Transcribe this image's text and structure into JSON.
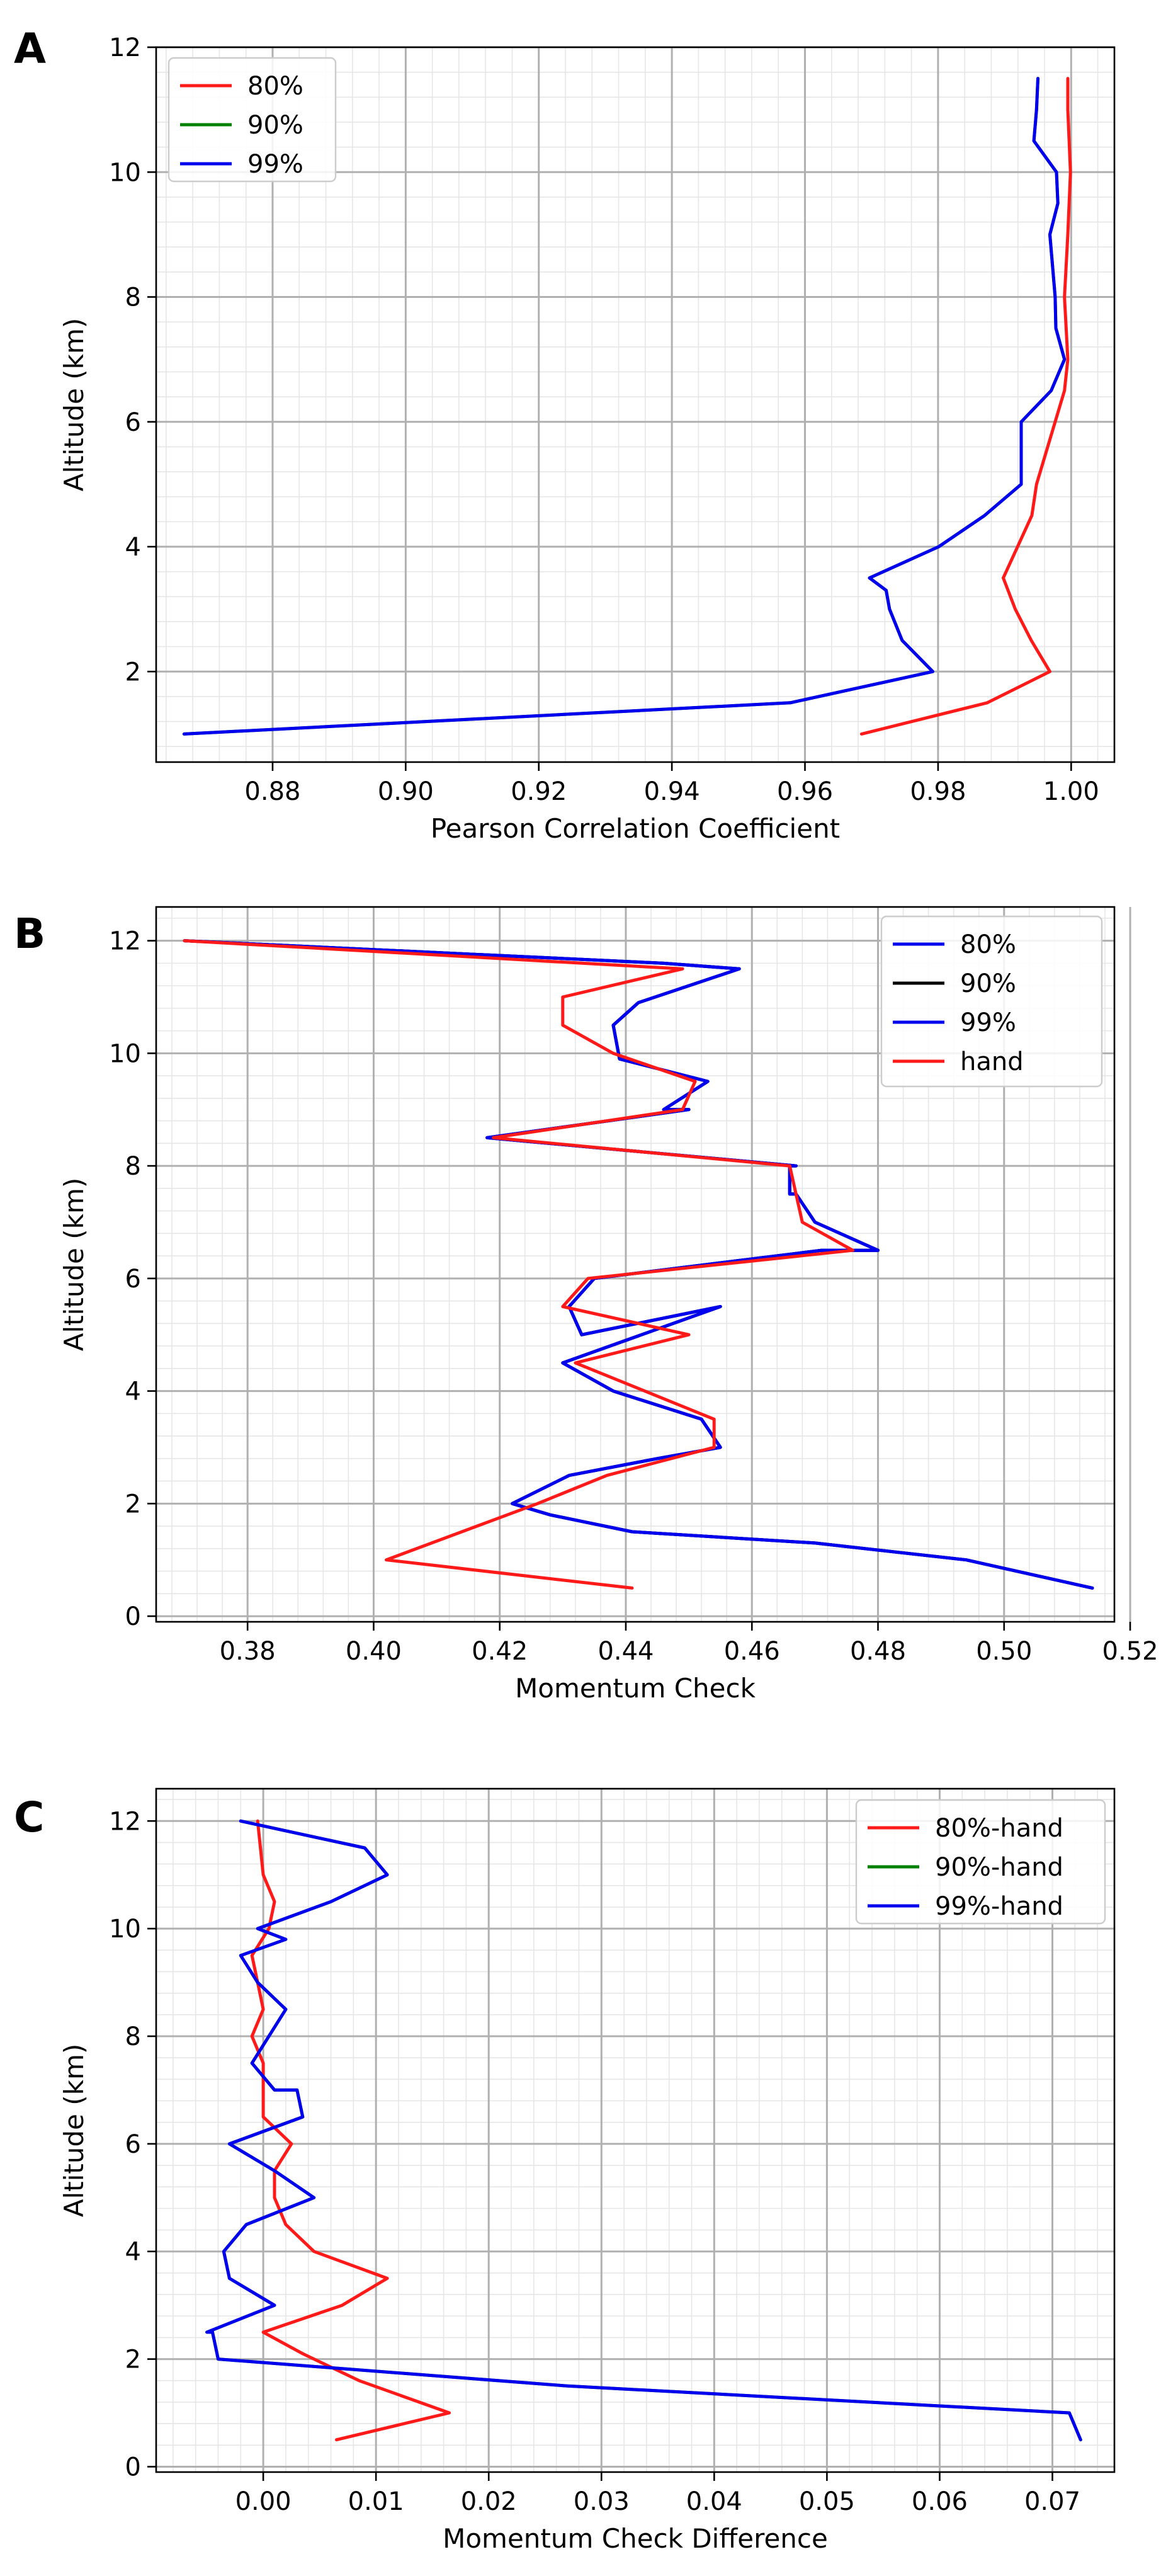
{
  "colors": {
    "red": "#ff1a1a",
    "green": "#008000",
    "blue": "#0000ee",
    "black": "#000000"
  },
  "chart_data": [
    {
      "panel": "A",
      "type": "line",
      "xlabel": "Pearson Correlation Coefficient",
      "ylabel": "Altitude (km)",
      "xlim": [
        0.8625,
        1.0065
      ],
      "ylim": [
        0.55,
        12.0
      ],
      "xticks": [
        0.88,
        0.9,
        0.92,
        0.94,
        0.96,
        0.98,
        1.0
      ],
      "xtick_labels": [
        "0.88",
        "0.90",
        "0.92",
        "0.94",
        "0.96",
        "0.98",
        "1.00"
      ],
      "yticks": [
        2,
        4,
        6,
        8,
        10,
        12
      ],
      "ytick_labels": [
        "2",
        "4",
        "6",
        "8",
        "10",
        "12"
      ],
      "minor_x_step": 0.004,
      "minor_y_step": 0.4,
      "grid": true,
      "legend_position": "upper-left",
      "series": [
        {
          "name": "80%",
          "color": "#ff1a1a",
          "x": [
            0.9685,
            0.9874,
            0.9968,
            0.994,
            0.9916,
            0.9898,
            0.9941,
            0.9948,
            0.999,
            0.9995,
            0.999,
            0.9995,
            0.9999,
            0.9995,
            0.9995
          ],
          "y": [
            1.0,
            1.5,
            2.0,
            2.5,
            3.0,
            3.5,
            4.5,
            5.0,
            6.5,
            7.0,
            8.0,
            9.0,
            10.0,
            11.0,
            11.5
          ]
        },
        {
          "name": "90%",
          "color": "#008000",
          "x": [
            0.8667,
            0.9578,
            0.9792,
            0.9746,
            0.9727,
            0.9722,
            0.9697,
            0.9801,
            0.987,
            0.9925,
            0.9925,
            0.997,
            0.999,
            0.9977,
            0.9976,
            0.9968,
            0.998,
            0.9978,
            0.9944,
            0.9948,
            0.995
          ],
          "y": [
            1.0,
            1.5,
            2.0,
            2.5,
            3.0,
            3.3,
            3.5,
            4.0,
            4.5,
            5.0,
            6.0,
            6.5,
            7.0,
            7.5,
            8.0,
            9.0,
            9.5,
            10.0,
            10.5,
            11.0,
            11.5
          ]
        },
        {
          "name": "99%",
          "color": "#0000ee",
          "x": [
            0.8667,
            0.9578,
            0.9792,
            0.9746,
            0.9727,
            0.9722,
            0.9697,
            0.9801,
            0.987,
            0.9925,
            0.9925,
            0.997,
            0.999,
            0.9977,
            0.9976,
            0.9968,
            0.998,
            0.9978,
            0.9944,
            0.9948,
            0.995
          ],
          "y": [
            1.0,
            1.5,
            2.0,
            2.5,
            3.0,
            3.3,
            3.5,
            4.0,
            4.5,
            5.0,
            6.0,
            6.5,
            7.0,
            7.5,
            8.0,
            9.0,
            9.5,
            10.0,
            10.5,
            11.0,
            11.5
          ]
        }
      ]
    },
    {
      "panel": "B",
      "type": "line",
      "xlabel": "Momentum Check",
      "ylabel": "Altitude (km)",
      "xlim": [
        0.3655,
        0.5175
      ],
      "ylim": [
        -0.1,
        12.6
      ],
      "xticks": [
        0.38,
        0.4,
        0.42,
        0.44,
        0.46,
        0.48,
        0.5,
        0.52
      ],
      "xtick_labels": [
        "0.38",
        "0.40",
        "0.42",
        "0.44",
        "0.46",
        "0.48",
        "0.50",
        "0.52"
      ],
      "yticks": [
        0,
        2,
        4,
        6,
        8,
        10,
        12
      ],
      "ytick_labels": [
        "0",
        "2",
        "4",
        "6",
        "8",
        "10",
        "12"
      ],
      "minor_x_step": 0.004,
      "minor_y_step": 0.4,
      "grid": true,
      "legend_position": "upper-right",
      "series": [
        {
          "name": "80%",
          "color": "#0000ee",
          "x": [
            0.514,
            0.494,
            0.47,
            0.441,
            0.428,
            0.422,
            0.431,
            0.445,
            0.455,
            0.452,
            0.438,
            0.43,
            0.455,
            0.433,
            0.431,
            0.435,
            0.471,
            0.48,
            0.47,
            0.467,
            0.466,
            0.466,
            0.467,
            0.418,
            0.45,
            0.446,
            0.453,
            0.439,
            0.438,
            0.442,
            0.458,
            0.446,
            0.37
          ],
          "y": [
            0.5,
            1.0,
            1.3,
            1.5,
            1.8,
            2.0,
            2.5,
            2.8,
            3.0,
            3.5,
            4.0,
            4.5,
            5.5,
            5.0,
            5.5,
            6.0,
            6.5,
            6.5,
            7.0,
            7.5,
            7.5,
            8.0,
            8.0,
            8.5,
            9.0,
            9.0,
            9.5,
            9.9,
            10.5,
            10.9,
            11.5,
            11.6,
            12.0
          ]
        },
        {
          "name": "90%",
          "color": "#000000",
          "x": [
            0.514,
            0.494,
            0.47,
            0.441,
            0.428,
            0.422,
            0.431,
            0.445,
            0.455,
            0.452,
            0.438,
            0.43,
            0.455,
            0.433,
            0.431,
            0.435,
            0.471,
            0.48,
            0.47,
            0.467,
            0.466,
            0.466,
            0.467,
            0.418,
            0.45,
            0.446,
            0.453,
            0.439,
            0.438,
            0.442,
            0.458,
            0.446,
            0.37
          ],
          "y": [
            0.5,
            1.0,
            1.3,
            1.5,
            1.8,
            2.0,
            2.5,
            2.8,
            3.0,
            3.5,
            4.0,
            4.5,
            5.5,
            5.0,
            5.5,
            6.0,
            6.5,
            6.5,
            7.0,
            7.5,
            7.5,
            8.0,
            8.0,
            8.5,
            9.0,
            9.0,
            9.5,
            9.9,
            10.5,
            10.9,
            11.5,
            11.6,
            12.0
          ]
        },
        {
          "name": "99%",
          "color": "#0000ee",
          "x": [
            0.514,
            0.494,
            0.47,
            0.441,
            0.428,
            0.422,
            0.431,
            0.445,
            0.455,
            0.452,
            0.438,
            0.43,
            0.455,
            0.433,
            0.431,
            0.435,
            0.471,
            0.48,
            0.47,
            0.467,
            0.466,
            0.466,
            0.467,
            0.418,
            0.45,
            0.446,
            0.453,
            0.439,
            0.438,
            0.442,
            0.458,
            0.446,
            0.37
          ],
          "y": [
            0.5,
            1.0,
            1.3,
            1.5,
            1.8,
            2.0,
            2.5,
            2.8,
            3.0,
            3.5,
            4.0,
            4.5,
            5.5,
            5.0,
            5.5,
            6.0,
            6.5,
            6.5,
            7.0,
            7.5,
            7.5,
            8.0,
            8.0,
            8.5,
            9.0,
            9.0,
            9.5,
            9.9,
            10.5,
            10.9,
            11.5,
            11.6,
            12.0
          ]
        },
        {
          "name": "hand",
          "color": "#ff1a1a",
          "x": [
            0.441,
            0.402,
            0.426,
            0.437,
            0.454,
            0.454,
            0.432,
            0.45,
            0.43,
            0.434,
            0.476,
            0.468,
            0.467,
            0.466,
            0.419,
            0.449,
            0.451,
            0.438,
            0.43,
            0.43,
            0.449,
            0.37
          ],
          "y": [
            0.5,
            1.0,
            2.0,
            2.5,
            3.0,
            3.5,
            4.5,
            5.0,
            5.5,
            6.0,
            6.5,
            7.0,
            7.5,
            8.0,
            8.5,
            9.0,
            9.5,
            10.0,
            10.5,
            11.0,
            11.5,
            12.0
          ]
        }
      ]
    },
    {
      "panel": "C",
      "type": "line",
      "xlabel": "Momentum Check Difference",
      "ylabel": "Altitude (km)",
      "xlim": [
        -0.0095,
        0.0755
      ],
      "ylim": [
        -0.1,
        12.6
      ],
      "xticks": [
        0.0,
        0.01,
        0.02,
        0.03,
        0.04,
        0.05,
        0.06,
        0.07
      ],
      "xtick_labels": [
        "0.00",
        "0.01",
        "0.02",
        "0.03",
        "0.04",
        "0.05",
        "0.06",
        "0.07"
      ],
      "yticks": [
        0,
        2,
        4,
        6,
        8,
        10,
        12
      ],
      "ytick_labels": [
        "0",
        "2",
        "4",
        "6",
        "8",
        "10",
        "12"
      ],
      "minor_x_step": 0.002,
      "minor_y_step": 0.4,
      "grid": true,
      "legend_position": "upper-right",
      "series": [
        {
          "name": "80%-hand",
          "color": "#ff1a1a",
          "x": [
            0.0065,
            0.0165,
            0.0085,
            0.0035,
            0.0,
            0.007,
            0.011,
            0.0045,
            0.002,
            0.001,
            0.001,
            0.0025,
            0.0,
            0.0,
            0.0,
            -0.001,
            0.0,
            -0.0005,
            -0.001,
            0.0005,
            0.001,
            0.0,
            -0.0005
          ],
          "y": [
            0.5,
            1.0,
            1.6,
            2.1,
            2.5,
            3.0,
            3.5,
            4.0,
            4.5,
            5.0,
            5.5,
            6.0,
            6.5,
            7.0,
            7.5,
            8.0,
            8.5,
            9.0,
            9.5,
            10.0,
            10.5,
            11.0,
            12.0
          ]
        },
        {
          "name": "90%-hand",
          "color": "#008000",
          "x": [
            0.0725,
            0.0715,
            0.027,
            -0.004,
            -0.0045,
            -0.005,
            0.001,
            -0.003,
            -0.0035,
            -0.0015,
            0.0045,
            0.001,
            -0.003,
            0.0035,
            0.003,
            0.001,
            -0.001,
            0.002,
            -0.0005,
            -0.002,
            0.002,
            -0.0005,
            0.006,
            0.011,
            0.009,
            -0.002
          ],
          "y": [
            0.5,
            1.0,
            1.5,
            2.0,
            2.5,
            2.5,
            3.0,
            3.5,
            4.0,
            4.5,
            5.0,
            5.5,
            6.0,
            6.5,
            7.0,
            7.0,
            7.5,
            8.5,
            9.0,
            9.5,
            9.8,
            10.0,
            10.5,
            11.0,
            11.5,
            12.0
          ]
        },
        {
          "name": "99%-hand",
          "color": "#0000ee",
          "x": [
            0.0725,
            0.0715,
            0.027,
            -0.004,
            -0.0045,
            -0.005,
            0.001,
            -0.003,
            -0.0035,
            -0.0015,
            0.0045,
            0.001,
            -0.003,
            0.0035,
            0.003,
            0.001,
            -0.001,
            0.002,
            -0.0005,
            -0.002,
            0.002,
            -0.0005,
            0.006,
            0.011,
            0.009,
            -0.002
          ],
          "y": [
            0.5,
            1.0,
            1.5,
            2.0,
            2.5,
            2.5,
            3.0,
            3.5,
            4.0,
            4.5,
            5.0,
            5.5,
            6.0,
            6.5,
            7.0,
            7.0,
            7.5,
            8.5,
            9.0,
            9.5,
            9.8,
            10.0,
            10.5,
            11.0,
            11.5,
            12.0
          ]
        }
      ]
    }
  ]
}
